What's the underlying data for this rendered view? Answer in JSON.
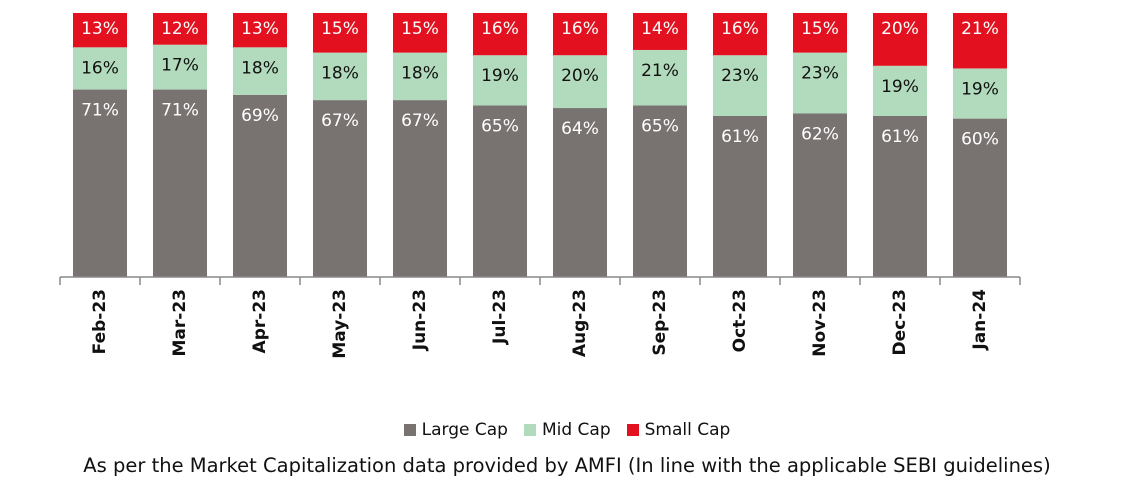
{
  "chart_data": {
    "type": "bar",
    "stacked": true,
    "categories": [
      "Feb-23",
      "Mar-23",
      "Apr-23",
      "May-23",
      "Jun-23",
      "Jul-23",
      "Aug-23",
      "Sep-23",
      "Oct-23",
      "Nov-23",
      "Dec-23",
      "Jan-24"
    ],
    "series": [
      {
        "name": "Large Cap",
        "color": "#787270",
        "values": [
          71,
          71,
          69,
          67,
          67,
          65,
          64,
          65,
          61,
          62,
          61,
          60
        ]
      },
      {
        "name": "Mid Cap",
        "color": "#b2dbbd",
        "values": [
          16,
          17,
          18,
          18,
          18,
          19,
          20,
          21,
          23,
          23,
          19,
          19
        ]
      },
      {
        "name": "Small Cap",
        "color": "#e3111f",
        "values": [
          13,
          12,
          13,
          15,
          15,
          16,
          16,
          14,
          16,
          15,
          20,
          21
        ]
      }
    ],
    "value_suffix": "%",
    "ylim": [
      0,
      100
    ],
    "grid": false,
    "legend_position": "bottom"
  },
  "caption": "As per the Market Capitalization data provided by AMFI (In line with the applicable SEBI guidelines)"
}
